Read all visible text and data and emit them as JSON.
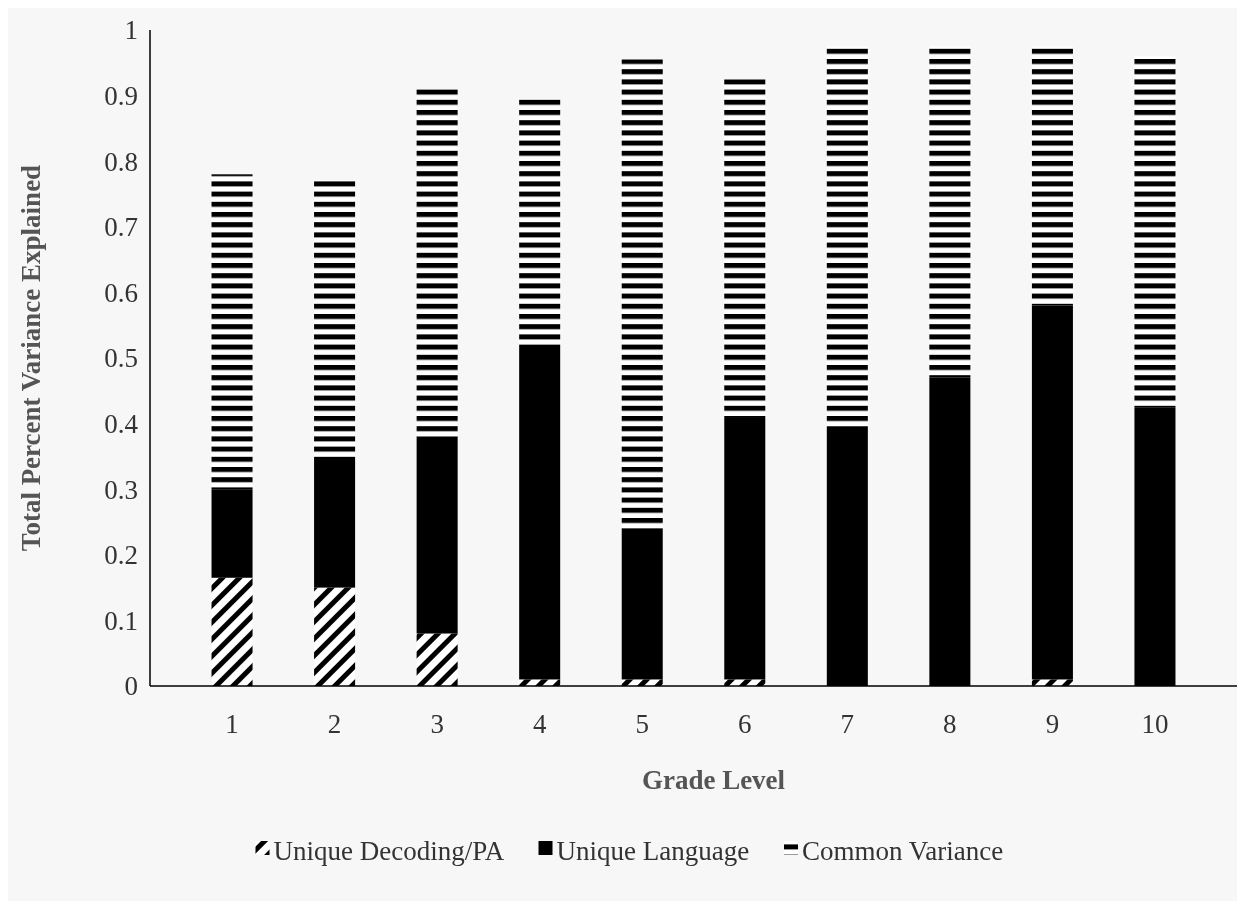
{
  "chart_data": {
    "type": "bar",
    "stacked": true,
    "xlabel": "Grade Level",
    "ylabel": "Total Percent Variance Explained",
    "categories": [
      "1",
      "2",
      "3",
      "4",
      "5",
      "6",
      "7",
      "8",
      "9",
      "10"
    ],
    "series": [
      {
        "name": "Unique Decoding/PA",
        "color": "#000000",
        "values": [
          0.165,
          0.15,
          0.08,
          0.01,
          0.01,
          0.01,
          0,
          0,
          0.01,
          0
        ]
      },
      {
        "name": "Unique Language",
        "color": "#000000",
        "values": [
          0.135,
          0.196,
          0.3,
          0.51,
          0.23,
          0.4,
          0.395,
          0.47,
          0.57,
          0.425
        ]
      },
      {
        "name": "Common Variance",
        "color": "#000000",
        "values": [
          0.48,
          0.425,
          0.53,
          0.375,
          0.715,
          0.515,
          0.58,
          0.505,
          0.395,
          0.535
        ]
      }
    ],
    "ylim": [
      0,
      1
    ],
    "yticks": [
      0,
      0.1,
      0.2,
      0.3,
      0.4,
      0.5,
      0.6,
      0.7,
      0.8,
      0.9,
      1
    ],
    "grid": false,
    "legend": "bottom"
  }
}
